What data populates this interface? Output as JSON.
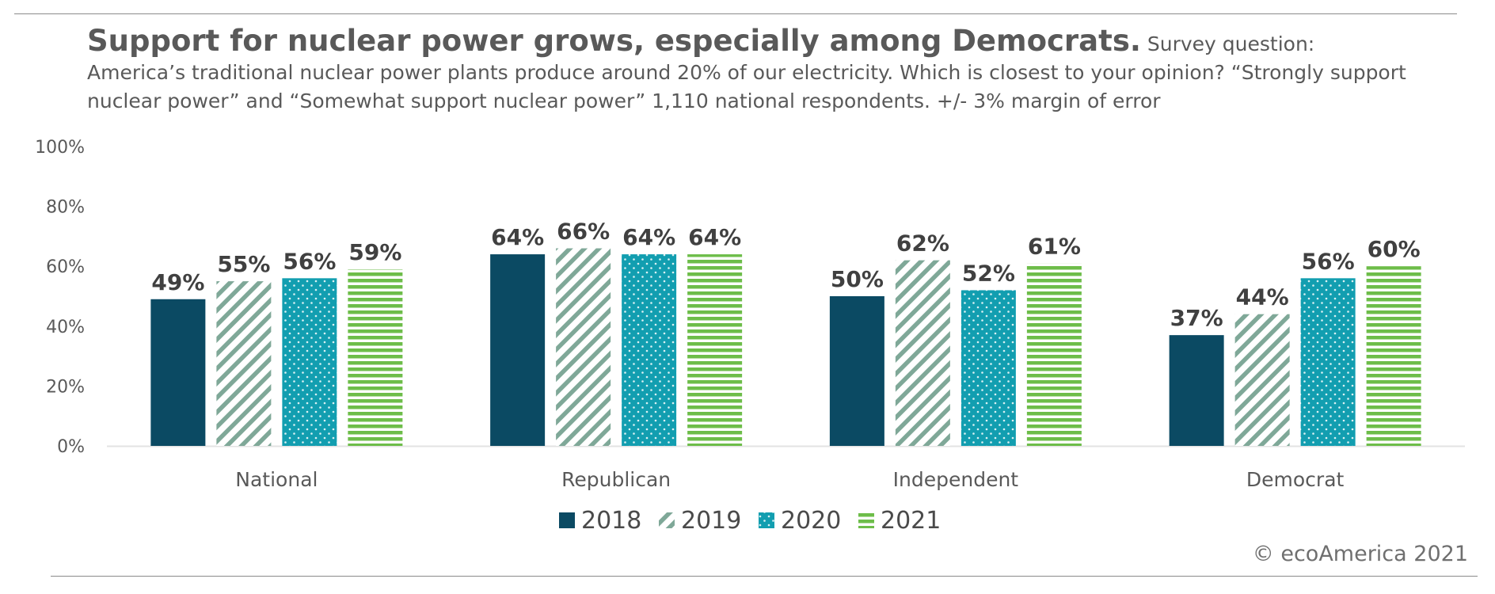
{
  "header": {
    "title": "Support for nuclear power grows, especially among Democrats.",
    "subtitle": "Survey question: America’s traditional nuclear power plants produce around 20% of our electricity. Which is closest to your opinion? “Strongly support nuclear power” and “Somewhat support nuclear power” 1,110 national respondents. +/- 3% margin of error"
  },
  "chart_data": {
    "type": "bar",
    "title": "Support for nuclear power grows, especially among Democrats.",
    "categories": [
      "National",
      "Republican",
      "Independent",
      "Democrat"
    ],
    "series": [
      {
        "name": "2018",
        "values": [
          49,
          64,
          50,
          37
        ],
        "labels": [
          "49%",
          "64%",
          "50%",
          "37%"
        ],
        "color": "#0b4a63",
        "pattern": "solid"
      },
      {
        "name": "2019",
        "values": [
          55,
          66,
          62,
          44
        ],
        "labels": [
          "55%",
          "66%",
          "62%",
          "44%"
        ],
        "color": "#7fa898",
        "pattern": "diagonal"
      },
      {
        "name": "2020",
        "values": [
          56,
          64,
          52,
          56
        ],
        "labels": [
          "56%",
          "64%",
          "52%",
          "56%"
        ],
        "color": "#129eb0",
        "pattern": "dots"
      },
      {
        "name": "2021",
        "values": [
          59,
          64,
          61,
          60
        ],
        "labels": [
          "59%",
          "64%",
          "61%",
          "60%"
        ],
        "color": "#6dbd49",
        "pattern": "horizontal"
      }
    ],
    "yticks": [
      "0%",
      "20%",
      "40%",
      "60%",
      "80%",
      "100%"
    ],
    "ylim": [
      0,
      100
    ],
    "xlabel": "",
    "ylabel": "",
    "grid": false,
    "legend_position": "bottom-center"
  },
  "footer": {
    "copyright": "© ecoAmerica 2021"
  }
}
